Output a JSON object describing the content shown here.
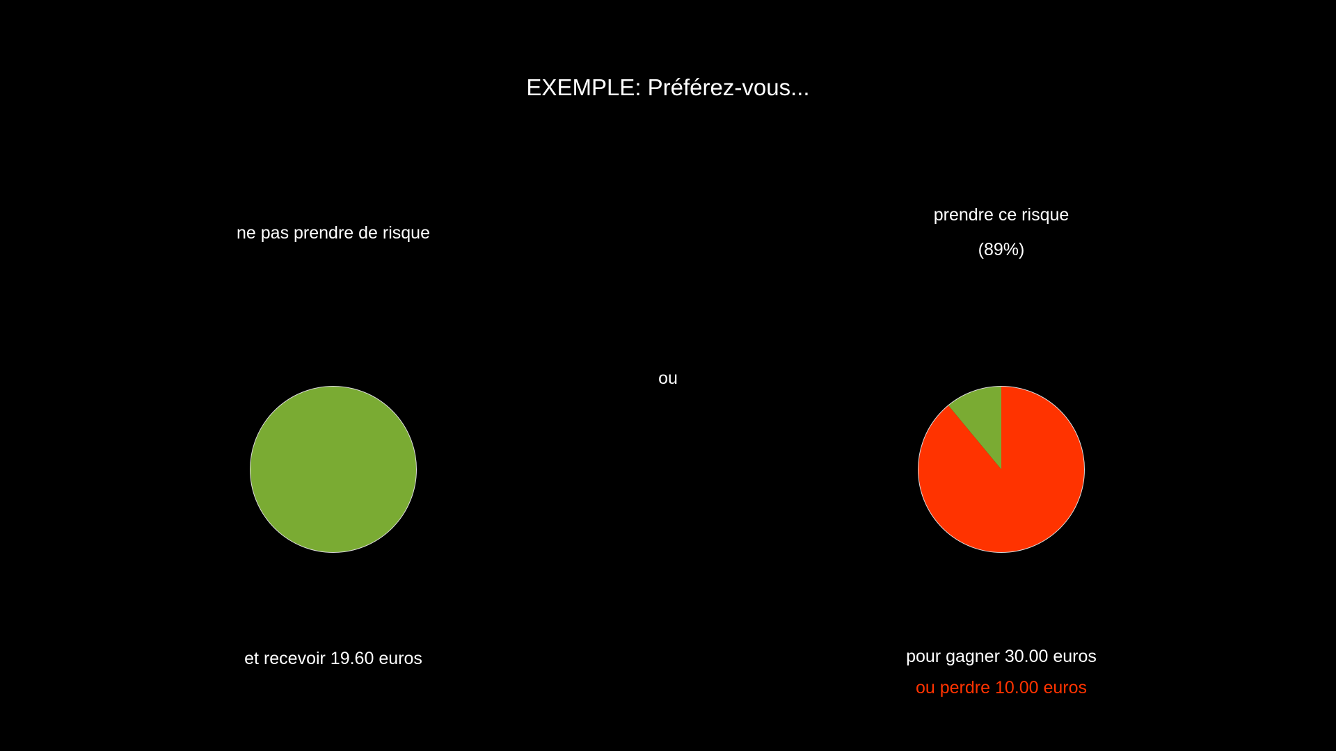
{
  "title": "EXEMPLE: Préférez-vous...",
  "separator": "ou",
  "safe_option": {
    "label": "ne pas prendre de risque",
    "outcome": "et recevoir 19.60 euros"
  },
  "risky_option": {
    "label": "prendre ce risque",
    "probability_label": "(89%)",
    "gain_text": "pour gagner 30.00 euros",
    "loss_text": "ou perdre 10.00 euros"
  },
  "colors": {
    "background": "#000000",
    "text": "#ffffff",
    "gain": "#7aab33",
    "loss": "#ff3300"
  },
  "chart_data": [
    {
      "type": "pie",
      "name": "safe",
      "slices": [
        {
          "label": "gain",
          "value": 100,
          "color": "#7aab33"
        }
      ]
    },
    {
      "type": "pie",
      "name": "risky",
      "slices": [
        {
          "label": "loss",
          "value": 89,
          "color": "#ff3300"
        },
        {
          "label": "gain",
          "value": 11,
          "color": "#7aab33"
        }
      ]
    }
  ]
}
